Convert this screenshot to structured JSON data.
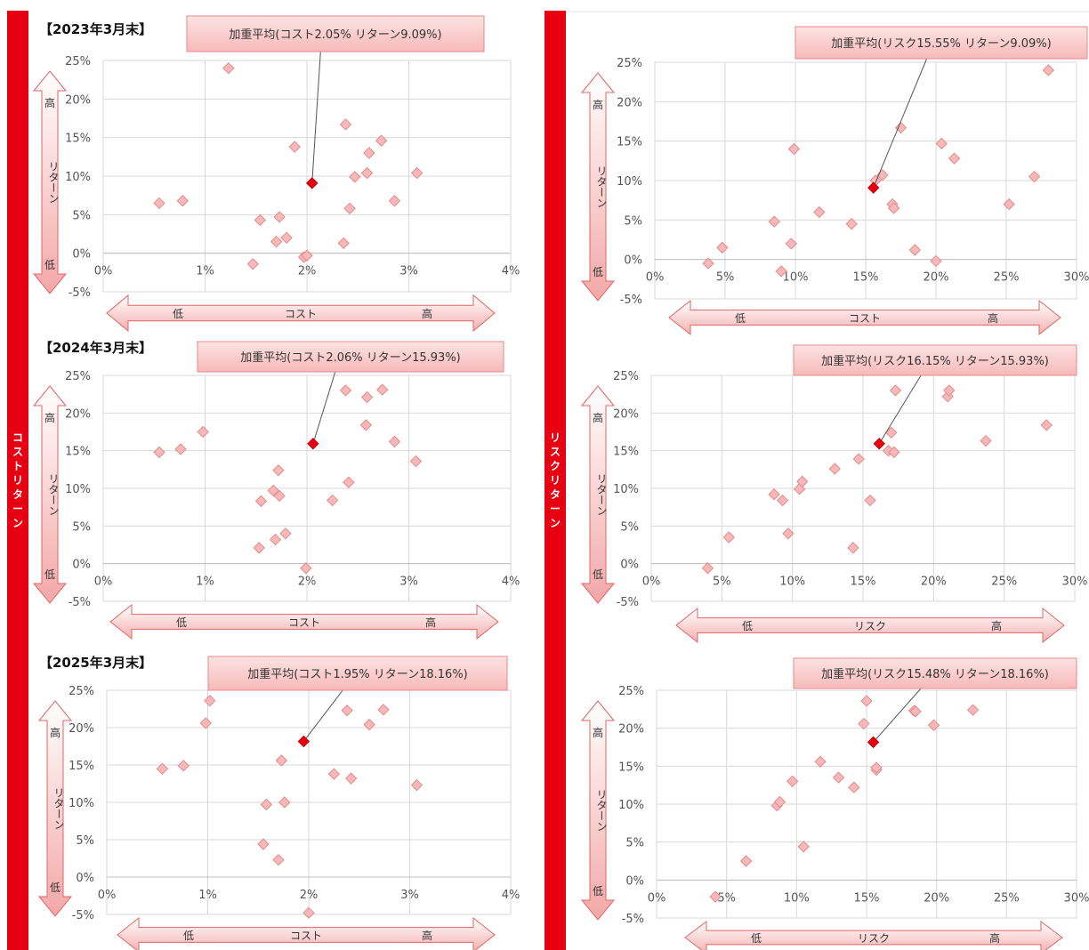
{
  "side_labels": {
    "left": "コストリターン",
    "right": "リスクリターン"
  },
  "chart_data": [
    {
      "type": "scatter",
      "title": "【2023年3月末】",
      "xlabel": "コスト",
      "x_low": "低",
      "x_high": "高",
      "ylabel": "リターン",
      "y_high": "高",
      "y_low": "低",
      "xlim": [
        0,
        4
      ],
      "ylim": [
        -5,
        25
      ],
      "xticks": [
        "0%",
        "1%",
        "2%",
        "3%",
        "4%"
      ],
      "yticks": [
        "25%",
        "20%",
        "15%",
        "10%",
        "5%",
        "0%",
        "-5%"
      ],
      "callout": "加重平均(コスト2.05% リターン9.09%)",
      "weighted_average": {
        "x": 2.05,
        "y": 9.09
      },
      "points": [
        [
          0.55,
          6.5
        ],
        [
          0.78,
          6.8
        ],
        [
          1.23,
          24
        ],
        [
          1.47,
          -1.4
        ],
        [
          1.54,
          4.3
        ],
        [
          1.7,
          1.5
        ],
        [
          1.73,
          4.7
        ],
        [
          1.8,
          2.0
        ],
        [
          1.88,
          13.8
        ],
        [
          1.97,
          -0.5
        ],
        [
          2.0,
          -0.3
        ],
        [
          2.36,
          1.3
        ],
        [
          2.38,
          16.7
        ],
        [
          2.42,
          5.8
        ],
        [
          2.47,
          9.9
        ],
        [
          2.59,
          10.4
        ],
        [
          2.61,
          13.0
        ],
        [
          2.73,
          14.6
        ],
        [
          2.86,
          6.8
        ],
        [
          3.08,
          10.4
        ]
      ]
    },
    {
      "type": "scatter",
      "title": "",
      "xlabel": "コスト",
      "x_low": "低",
      "x_high": "高",
      "ylabel": "リターン",
      "y_high": "高",
      "y_low": "低",
      "xlim": [
        0,
        30
      ],
      "ylim": [
        -5,
        25
      ],
      "xticks": [
        "0%",
        "5%",
        "10%",
        "15%",
        "20%",
        "25%",
        "30%"
      ],
      "yticks": [
        "25%",
        "20%",
        "15%",
        "10%",
        "5%",
        "0%",
        "-5%"
      ],
      "callout": "加重平均(リスク15.55% リターン9.09%)",
      "weighted_average": {
        "x": 15.55,
        "y": 9.09
      },
      "points": [
        [
          3.8,
          -0.5
        ],
        [
          4.8,
          1.5
        ],
        [
          8.5,
          4.8
        ],
        [
          9.0,
          -1.5
        ],
        [
          9.7,
          2.0
        ],
        [
          9.9,
          14.0
        ],
        [
          11.7,
          6.0
        ],
        [
          14.0,
          4.5
        ],
        [
          15.7,
          10.0
        ],
        [
          16.2,
          10.7
        ],
        [
          16.9,
          7.0
        ],
        [
          17.0,
          6.5
        ],
        [
          17.5,
          16.7
        ],
        [
          18.5,
          1.2
        ],
        [
          20.0,
          -0.2
        ],
        [
          20.4,
          14.7
        ],
        [
          21.3,
          12.8
        ],
        [
          25.2,
          7.0
        ],
        [
          27.0,
          10.5
        ],
        [
          28.0,
          24.0
        ]
      ]
    },
    {
      "type": "scatter",
      "title": "【2024年3月末】",
      "xlabel": "コスト",
      "x_low": "低",
      "x_high": "高",
      "ylabel": "リターン",
      "y_high": "高",
      "y_low": "低",
      "xlim": [
        0,
        4
      ],
      "ylim": [
        -5,
        25
      ],
      "xticks": [
        "0%",
        "1%",
        "2%",
        "3%",
        "4%"
      ],
      "yticks": [
        "25%",
        "20%",
        "15%",
        "10%",
        "5%",
        "0%",
        "-5%"
      ],
      "callout": "加重平均(コスト2.06% リターン15.93%)",
      "weighted_average": {
        "x": 2.06,
        "y": 15.93
      },
      "points": [
        [
          0.55,
          14.8
        ],
        [
          0.76,
          15.2
        ],
        [
          0.98,
          17.5
        ],
        [
          1.53,
          2.1
        ],
        [
          1.55,
          8.3
        ],
        [
          1.67,
          9.7
        ],
        [
          1.69,
          3.2
        ],
        [
          1.72,
          12.4
        ],
        [
          1.73,
          9.0
        ],
        [
          1.79,
          4.0
        ],
        [
          1.99,
          -0.6
        ],
        [
          2.25,
          8.4
        ],
        [
          2.38,
          23.0
        ],
        [
          2.41,
          10.8
        ],
        [
          2.58,
          18.4
        ],
        [
          2.59,
          22.1
        ],
        [
          2.74,
          23.1
        ],
        [
          2.86,
          16.2
        ],
        [
          3.07,
          13.6
        ]
      ]
    },
    {
      "type": "scatter",
      "title": "",
      "xlabel": "リスク",
      "x_low": "低",
      "x_high": "高",
      "ylabel": "リターン",
      "y_high": "高",
      "y_low": "低",
      "xlim": [
        0,
        30
      ],
      "ylim": [
        -5,
        25
      ],
      "xticks": [
        "0%",
        "5%",
        "10%",
        "15%",
        "20%",
        "25%",
        "30%"
      ],
      "yticks": [
        "25%",
        "20%",
        "15%",
        "10%",
        "5%",
        "0%",
        "-5%"
      ],
      "callout": "加重平均(リスク16.15% リターン15.93%)",
      "weighted_average": {
        "x": 16.15,
        "y": 15.93
      },
      "points": [
        [
          4.0,
          -0.6
        ],
        [
          5.5,
          3.5
        ],
        [
          8.7,
          9.2
        ],
        [
          9.3,
          8.4
        ],
        [
          9.7,
          4.0
        ],
        [
          10.5,
          9.9
        ],
        [
          10.7,
          10.9
        ],
        [
          13.0,
          12.6
        ],
        [
          14.3,
          2.1
        ],
        [
          14.7,
          13.9
        ],
        [
          15.5,
          8.4
        ],
        [
          16.8,
          15.0
        ],
        [
          17.0,
          17.4
        ],
        [
          17.3,
          23.0
        ],
        [
          21.0,
          22.2
        ],
        [
          21.1,
          23.0
        ],
        [
          23.7,
          16.3
        ],
        [
          28.0,
          18.4
        ],
        [
          17.2,
          14.8
        ]
      ]
    },
    {
      "type": "scatter",
      "title": "【2025年3月末】",
      "xlabel": "コスト",
      "x_low": "低",
      "x_high": "高",
      "ylabel": "リターン",
      "y_high": "高",
      "y_low": "低",
      "xlim": [
        0,
        4
      ],
      "ylim": [
        -5,
        25
      ],
      "xticks": [
        "0%",
        "1%",
        "2%",
        "3%",
        "4%"
      ],
      "yticks": [
        "25%",
        "20%",
        "15%",
        "10%",
        "5%",
        "0%",
        "-5%"
      ],
      "callout": "加重平均(コスト1.95% リターン18.16%)",
      "weighted_average": {
        "x": 1.95,
        "y": 18.16
      },
      "points": [
        [
          0.55,
          14.5
        ],
        [
          0.76,
          14.9
        ],
        [
          0.98,
          20.6
        ],
        [
          1.02,
          23.6
        ],
        [
          1.55,
          4.4
        ],
        [
          1.58,
          9.7
        ],
        [
          1.7,
          2.3
        ],
        [
          1.73,
          15.6
        ],
        [
          1.76,
          10.0
        ],
        [
          2.0,
          -4.8
        ],
        [
          2.25,
          13.8
        ],
        [
          2.38,
          22.3
        ],
        [
          2.42,
          13.2
        ],
        [
          2.6,
          20.4
        ],
        [
          2.74,
          22.4
        ],
        [
          3.07,
          12.3
        ]
      ]
    },
    {
      "type": "scatter",
      "title": "",
      "xlabel": "リスク",
      "x_low": "低",
      "x_high": "高",
      "ylabel": "リターン",
      "y_high": "高",
      "y_low": "低",
      "xlim": [
        0,
        30
      ],
      "ylim": [
        -5,
        25
      ],
      "xticks": [
        "0%",
        "5%",
        "10%",
        "15%",
        "20%",
        "25%",
        "30%"
      ],
      "yticks": [
        "25%",
        "20%",
        "15%",
        "10%",
        "5%",
        "0%",
        "-5%"
      ],
      "callout": "加重平均(リスク15.48% リターン18.16%)",
      "weighted_average": {
        "x": 15.48,
        "y": 18.16
      },
      "points": [
        [
          4.2,
          -2.2
        ],
        [
          6.4,
          2.5
        ],
        [
          8.6,
          9.8
        ],
        [
          8.8,
          10.3
        ],
        [
          9.7,
          13.0
        ],
        [
          10.5,
          4.4
        ],
        [
          11.7,
          15.6
        ],
        [
          13.0,
          13.5
        ],
        [
          14.1,
          12.2
        ],
        [
          14.8,
          20.6
        ],
        [
          15.0,
          23.6
        ],
        [
          15.7,
          14.5
        ],
        [
          15.7,
          14.8
        ],
        [
          18.4,
          22.3
        ],
        [
          18.5,
          22.2
        ],
        [
          19.8,
          20.4
        ],
        [
          22.6,
          22.4
        ]
      ]
    }
  ]
}
